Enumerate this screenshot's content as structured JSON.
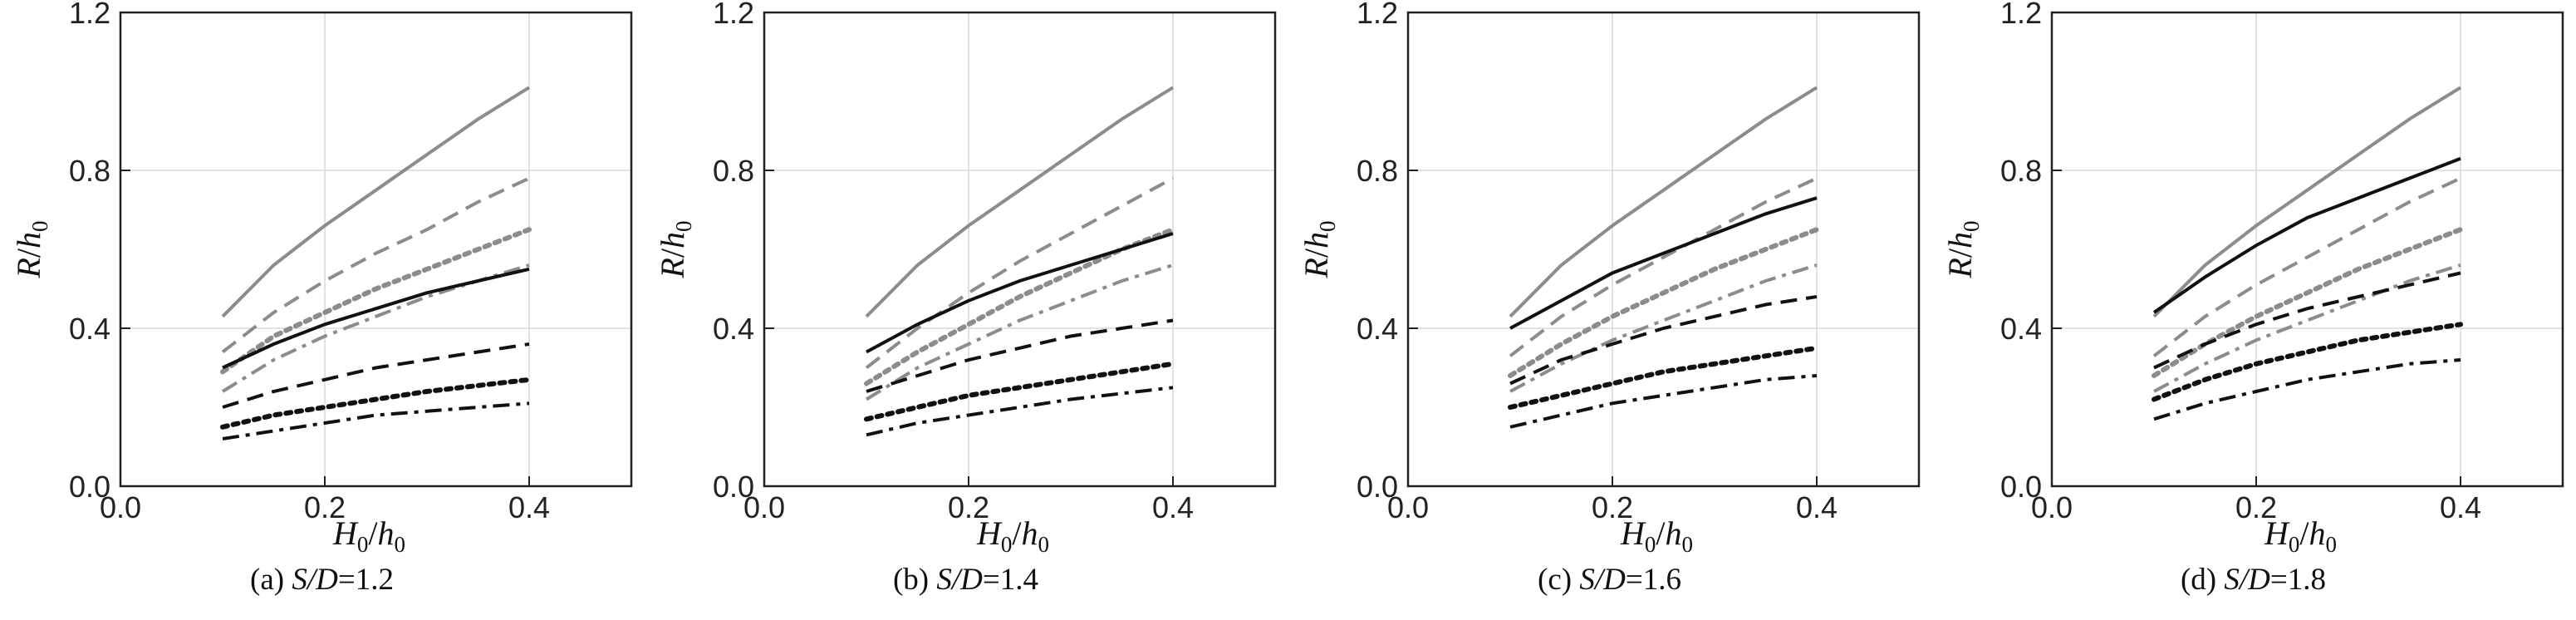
{
  "chart_data": [
    {
      "type": "line",
      "panel_label": "(a)",
      "caption_var": "S/D",
      "caption_value": "=1.2",
      "xlabel": "H0/h0",
      "ylabel": "R/h0",
      "xlim": [
        0.0,
        0.5
      ],
      "ylim": [
        0.0,
        1.2
      ],
      "xticks": [
        "0.0",
        "0.2",
        "0.4"
      ],
      "yticks": [
        "0.0",
        "0.4",
        "0.8",
        "1.2"
      ],
      "grid": true,
      "x": [
        0.1,
        0.15,
        0.2,
        0.25,
        0.3,
        0.35,
        0.4
      ],
      "series": [
        {
          "color": "#8c8c8c",
          "dash": "solid",
          "values": [
            0.43,
            0.56,
            0.66,
            0.75,
            0.84,
            0.93,
            1.01
          ]
        },
        {
          "color": "#8c8c8c",
          "dash": "dash",
          "values": [
            0.34,
            0.44,
            0.52,
            0.59,
            0.65,
            0.72,
            0.78
          ]
        },
        {
          "color": "#8c8c8c",
          "dash": "dot",
          "values": [
            0.29,
            0.38,
            0.44,
            0.5,
            0.55,
            0.6,
            0.65
          ]
        },
        {
          "color": "#8c8c8c",
          "dash": "dashdot",
          "values": [
            0.24,
            0.32,
            0.38,
            0.43,
            0.48,
            0.52,
            0.56
          ]
        },
        {
          "color": "#111111",
          "dash": "solid",
          "values": [
            0.3,
            0.36,
            0.41,
            0.45,
            0.49,
            0.52,
            0.55
          ]
        },
        {
          "color": "#111111",
          "dash": "dash",
          "values": [
            0.2,
            0.24,
            0.27,
            0.3,
            0.32,
            0.34,
            0.36
          ]
        },
        {
          "color": "#111111",
          "dash": "dot",
          "values": [
            0.15,
            0.18,
            0.2,
            0.22,
            0.24,
            0.255,
            0.27
          ]
        },
        {
          "color": "#111111",
          "dash": "dashdot",
          "values": [
            0.12,
            0.14,
            0.16,
            0.18,
            0.19,
            0.2,
            0.21
          ]
        }
      ]
    },
    {
      "type": "line",
      "panel_label": "(b)",
      "caption_var": "S/D",
      "caption_value": "=1.4",
      "xlabel": "H0/h0",
      "ylabel": "R/h0",
      "xlim": [
        0.0,
        0.5
      ],
      "ylim": [
        0.0,
        1.2
      ],
      "xticks": [
        "0.0",
        "0.2",
        "0.4"
      ],
      "yticks": [
        "0.0",
        "0.4",
        "0.8",
        "1.2"
      ],
      "grid": true,
      "x": [
        0.1,
        0.15,
        0.2,
        0.25,
        0.3,
        0.35,
        0.4
      ],
      "series": [
        {
          "color": "#8c8c8c",
          "dash": "solid",
          "values": [
            0.43,
            0.56,
            0.66,
            0.75,
            0.84,
            0.93,
            1.01
          ]
        },
        {
          "color": "#8c8c8c",
          "dash": "dash",
          "values": [
            0.3,
            0.4,
            0.49,
            0.57,
            0.64,
            0.71,
            0.78
          ]
        },
        {
          "color": "#8c8c8c",
          "dash": "dot",
          "values": [
            0.26,
            0.34,
            0.41,
            0.48,
            0.54,
            0.6,
            0.65
          ]
        },
        {
          "color": "#8c8c8c",
          "dash": "dashdot",
          "values": [
            0.22,
            0.3,
            0.36,
            0.42,
            0.47,
            0.52,
            0.56
          ]
        },
        {
          "color": "#111111",
          "dash": "solid",
          "values": [
            0.34,
            0.41,
            0.47,
            0.52,
            0.56,
            0.6,
            0.64
          ]
        },
        {
          "color": "#111111",
          "dash": "dash",
          "values": [
            0.24,
            0.28,
            0.32,
            0.35,
            0.38,
            0.4,
            0.42
          ]
        },
        {
          "color": "#111111",
          "dash": "dot",
          "values": [
            0.17,
            0.2,
            0.23,
            0.25,
            0.27,
            0.29,
            0.31
          ]
        },
        {
          "color": "#111111",
          "dash": "dashdot",
          "values": [
            0.13,
            0.16,
            0.18,
            0.2,
            0.22,
            0.235,
            0.25
          ]
        }
      ]
    },
    {
      "type": "line",
      "panel_label": "(c)",
      "caption_var": "S/D",
      "caption_value": "=1.6",
      "xlabel": "H0/h0",
      "ylabel": "R/h0",
      "xlim": [
        0.0,
        0.5
      ],
      "ylim": [
        0.0,
        1.2
      ],
      "xticks": [
        "0.0",
        "0.2",
        "0.4"
      ],
      "yticks": [
        "0.0",
        "0.4",
        "0.8",
        "1.2"
      ],
      "grid": true,
      "x": [
        0.1,
        0.15,
        0.2,
        0.25,
        0.3,
        0.35,
        0.4
      ],
      "series": [
        {
          "color": "#8c8c8c",
          "dash": "solid",
          "values": [
            0.43,
            0.56,
            0.66,
            0.75,
            0.84,
            0.93,
            1.01
          ]
        },
        {
          "color": "#8c8c8c",
          "dash": "dash",
          "values": [
            0.33,
            0.43,
            0.51,
            0.58,
            0.65,
            0.72,
            0.78
          ]
        },
        {
          "color": "#8c8c8c",
          "dash": "dot",
          "values": [
            0.28,
            0.36,
            0.43,
            0.49,
            0.55,
            0.6,
            0.65
          ]
        },
        {
          "color": "#8c8c8c",
          "dash": "dashdot",
          "values": [
            0.24,
            0.31,
            0.37,
            0.42,
            0.47,
            0.52,
            0.56
          ]
        },
        {
          "color": "#111111",
          "dash": "solid",
          "values": [
            0.4,
            0.47,
            0.54,
            0.59,
            0.64,
            0.69,
            0.73
          ]
        },
        {
          "color": "#111111",
          "dash": "dash",
          "values": [
            0.26,
            0.32,
            0.36,
            0.4,
            0.43,
            0.46,
            0.48
          ]
        },
        {
          "color": "#111111",
          "dash": "dot",
          "values": [
            0.2,
            0.23,
            0.26,
            0.29,
            0.31,
            0.33,
            0.35
          ]
        },
        {
          "color": "#111111",
          "dash": "dashdot",
          "values": [
            0.15,
            0.18,
            0.21,
            0.23,
            0.25,
            0.27,
            0.28
          ]
        }
      ]
    },
    {
      "type": "line",
      "panel_label": "(d)",
      "caption_var": "S/D",
      "caption_value": "=1.8",
      "xlabel": "H0/h0",
      "ylabel": "R/h0",
      "xlim": [
        0.0,
        0.5
      ],
      "ylim": [
        0.0,
        1.2
      ],
      "xticks": [
        "0.0",
        "0.2",
        "0.4"
      ],
      "yticks": [
        "0.0",
        "0.4",
        "0.8",
        "1.2"
      ],
      "grid": true,
      "x": [
        0.1,
        0.15,
        0.2,
        0.25,
        0.3,
        0.35,
        0.4
      ],
      "series": [
        {
          "color": "#8c8c8c",
          "dash": "solid",
          "values": [
            0.43,
            0.56,
            0.66,
            0.75,
            0.84,
            0.93,
            1.01
          ]
        },
        {
          "color": "#8c8c8c",
          "dash": "dash",
          "values": [
            0.33,
            0.43,
            0.51,
            0.58,
            0.65,
            0.72,
            0.78
          ]
        },
        {
          "color": "#8c8c8c",
          "dash": "dot",
          "values": [
            0.28,
            0.36,
            0.43,
            0.49,
            0.55,
            0.6,
            0.65
          ]
        },
        {
          "color": "#8c8c8c",
          "dash": "dashdot",
          "values": [
            0.24,
            0.31,
            0.37,
            0.42,
            0.47,
            0.52,
            0.56
          ]
        },
        {
          "color": "#111111",
          "dash": "solid",
          "values": [
            0.44,
            0.53,
            0.61,
            0.68,
            0.73,
            0.78,
            0.83
          ]
        },
        {
          "color": "#111111",
          "dash": "dash",
          "values": [
            0.3,
            0.36,
            0.41,
            0.45,
            0.48,
            0.51,
            0.54
          ]
        },
        {
          "color": "#111111",
          "dash": "dot",
          "values": [
            0.22,
            0.27,
            0.31,
            0.34,
            0.37,
            0.39,
            0.41
          ]
        },
        {
          "color": "#111111",
          "dash": "dashdot",
          "values": [
            0.17,
            0.21,
            0.24,
            0.27,
            0.29,
            0.31,
            0.32
          ]
        }
      ]
    }
  ]
}
